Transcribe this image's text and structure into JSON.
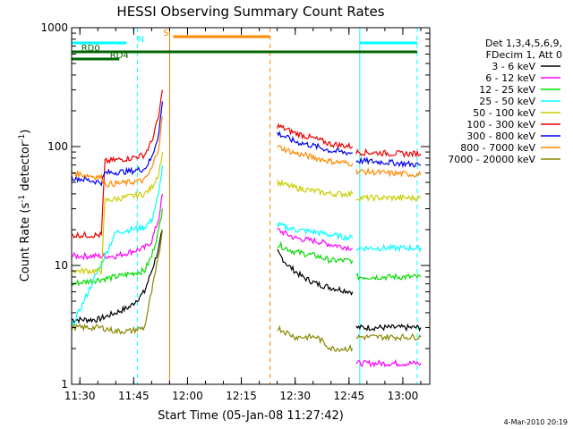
{
  "chart_data": {
    "type": "line",
    "title": "HESSI Observing Summary Count Rates",
    "xlabel": "Start Time (05-Jan-08 11:27:42)",
    "ylabel": "Count Rate (s",
    "ylabel_sup": "-1",
    "ylabel_mid": " detector",
    "ylabel_sup2": "-1",
    "ylabel_end": ")",
    "y_scale": "log",
    "ylim": [
      1,
      1000
    ],
    "xlim": [
      "11:27:42",
      "13:07:30"
    ],
    "x_ticks": [
      "11:30",
      "11:45",
      "12:00",
      "12:15",
      "12:30",
      "12:45",
      "13:00"
    ],
    "y_ticks": [
      "1",
      "10",
      "100",
      "1000"
    ],
    "legend_header": [
      "Det 1,3,4,5,6,9,",
      "FDecim 1, Att 0"
    ],
    "legend_placement": "right",
    "series": [
      {
        "name": "3 - 6 keV",
        "color": "#000000",
        "segments": [
          {
            "x": [
              "11:27:42",
              "11:35",
              "11:40",
              "11:44",
              "11:48",
              "11:50",
              "11:52",
              "11:53"
            ],
            "y": [
              3.5,
              3.5,
              4,
              4.5,
              6,
              9,
              14,
              20
            ]
          },
          {
            "x": [
              "12:25",
              "12:28",
              "12:32",
              "12:36",
              "12:40",
              "12:46"
            ],
            "y": [
              13,
              10,
              8,
              7,
              6.5,
              6
            ]
          },
          {
            "x": [
              "12:47",
              "12:50",
              "12:55",
              "13:00",
              "13:05"
            ],
            "y": [
              3,
              3,
              3,
              3,
              3
            ]
          }
        ]
      },
      {
        "name": "6 - 12 keV",
        "color": "#ff00ff",
        "segments": [
          {
            "x": [
              "11:27:42",
              "11:40",
              "11:44",
              "11:48",
              "11:50",
              "11:52",
              "11:53"
            ],
            "y": [
              12,
              12,
              13,
              14,
              16,
              25,
              40
            ]
          },
          {
            "x": [
              "12:25",
              "12:30",
              "12:36",
              "12:40",
              "12:46"
            ],
            "y": [
              20,
              17,
              16,
              15,
              14
            ]
          },
          {
            "x": [
              "12:47",
              "12:55",
              "13:00",
              "13:05"
            ],
            "y": [
              1.5,
              1.5,
              1.5,
              1.5
            ]
          }
        ]
      },
      {
        "name": "12 - 25 keV",
        "color": "#00dd00",
        "segments": [
          {
            "x": [
              "11:27:42",
              "11:40",
              "11:44",
              "11:48",
              "11:50",
              "11:52",
              "11:53"
            ],
            "y": [
              7,
              8,
              8.5,
              9,
              12,
              20,
              30
            ]
          },
          {
            "x": [
              "12:25",
              "12:30",
              "12:36",
              "12:40",
              "12:46"
            ],
            "y": [
              15,
              13,
              12,
              11,
              11
            ]
          },
          {
            "x": [
              "12:47",
              "12:55",
              "13:00",
              "13:05"
            ],
            "y": [
              8,
              8,
              8,
              8
            ]
          }
        ]
      },
      {
        "name": "25 - 50 keV",
        "color": "#00ffff",
        "segments": [
          {
            "x": [
              "11:27:42",
              "11:40",
              "11:44",
              "11:48",
              "11:50",
              "11:52",
              "11:53"
            ],
            "y": [
              3,
              19,
              20,
              21,
              24,
              40,
              70
            ]
          },
          {
            "x": [
              "12:25",
              "12:30",
              "12:36",
              "12:40",
              "12:46"
            ],
            "y": [
              22,
              20,
              19,
              18,
              17
            ]
          },
          {
            "x": [
              "12:47",
              "12:55",
              "13:00",
              "13:05"
            ],
            "y": [
              14,
              14,
              14,
              14
            ]
          }
        ]
      },
      {
        "name": "50 - 100 keV",
        "color": "#cccc00",
        "segments": [
          {
            "x": [
              "11:27:42",
              "11:36",
              "11:37",
              "11:44",
              "11:48",
              "11:50",
              "11:52",
              "11:53"
            ],
            "y": [
              9,
              9,
              35,
              38,
              40,
              45,
              60,
              90
            ]
          },
          {
            "x": [
              "12:25",
              "12:30",
              "12:36",
              "12:40",
              "12:46"
            ],
            "y": [
              50,
              45,
              42,
              40,
              40
            ]
          },
          {
            "x": [
              "12:47",
              "12:55",
              "13:00",
              "13:05"
            ],
            "y": [
              37,
              37,
              37,
              37
            ]
          }
        ]
      },
      {
        "name": "100 - 300 keV",
        "color": "#ee0000",
        "segments": [
          {
            "x": [
              "11:27:42",
              "11:36",
              "11:37",
              "11:44",
              "11:48",
              "11:50",
              "11:52",
              "11:53"
            ],
            "y": [
              18,
              18,
              75,
              80,
              85,
              110,
              180,
              300
            ]
          },
          {
            "x": [
              "12:25",
              "12:30",
              "12:36",
              "12:40",
              "12:46"
            ],
            "y": [
              150,
              130,
              115,
              105,
              100
            ]
          },
          {
            "x": [
              "12:47",
              "12:55",
              "13:00",
              "13:05"
            ],
            "y": [
              90,
              88,
              87,
              87
            ]
          }
        ]
      },
      {
        "name": "300 - 800 keV",
        "color": "#0000ee",
        "segments": [
          {
            "x": [
              "11:27:42",
              "11:36",
              "11:37",
              "11:44",
              "11:48",
              "11:50",
              "11:52",
              "11:53"
            ],
            "y": [
              55,
              50,
              60,
              62,
              65,
              80,
              130,
              240
            ]
          },
          {
            "x": [
              "12:25",
              "12:30",
              "12:36",
              "12:40",
              "12:46"
            ],
            "y": [
              130,
              110,
              100,
              92,
              88
            ]
          },
          {
            "x": [
              "12:47",
              "12:55",
              "13:00",
              "13:05"
            ],
            "y": [
              76,
              74,
              72,
              70
            ]
          }
        ]
      },
      {
        "name": "800 - 7000 keV",
        "color": "#ff8800",
        "segments": [
          {
            "x": [
              "11:27:42",
              "11:36",
              "11:37",
              "11:44",
              "11:48",
              "11:50",
              "11:52",
              "11:53"
            ],
            "y": [
              60,
              55,
              48,
              50,
              52,
              65,
              100,
              180
            ]
          },
          {
            "x": [
              "12:25",
              "12:30",
              "12:36",
              "12:40",
              "12:46"
            ],
            "y": [
              100,
              88,
              80,
              75,
              72
            ]
          },
          {
            "x": [
              "12:47",
              "12:55",
              "13:00",
              "13:05"
            ],
            "y": [
              62,
              60,
              59,
              58
            ]
          }
        ]
      },
      {
        "name": "7000 - 20000 keV",
        "color": "#888800",
        "segments": [
          {
            "x": [
              "11:27:42",
              "11:36",
              "11:40",
              "11:44",
              "11:48",
              "11:50",
              "11:52",
              "11:53"
            ],
            "y": [
              3,
              3,
              2.8,
              2.8,
              3,
              6,
              12,
              20
            ]
          },
          {
            "x": [
              "12:25",
              "12:30",
              "12:36",
              "12:40",
              "12:46"
            ],
            "y": [
              3,
              2.5,
              2.5,
              2,
              2
            ]
          },
          {
            "x": [
              "12:47",
              "12:55",
              "13:00",
              "13:05"
            ],
            "y": [
              2.5,
              2.5,
              2.5,
              2.5
            ]
          }
        ]
      }
    ],
    "flags": [
      {
        "label": "RD0",
        "color": "#006600",
        "x": [
          "11:27:42",
          "13:04"
        ],
        "text_pos": "11:33"
      },
      {
        "label": "RD4",
        "color": "#006600",
        "x": [
          "11:27:42",
          "11:41"
        ],
        "text_pos": "11:41"
      },
      {
        "label": "N",
        "color": "#00ffff",
        "x": [
          "11:27:42",
          "11:43"
        ],
        "text_pos": "11:47"
      },
      {
        "label": "N",
        "color": "#00ffff",
        "x": [
          "12:48",
          "13:04"
        ],
        "text_pos": ""
      },
      {
        "label": "S",
        "color": "#ff8800",
        "x": [
          "11:56",
          "12:23"
        ],
        "text_pos": "11:54"
      }
    ],
    "vertical_lines": [
      {
        "x": "11:46",
        "color": "#00ffff",
        "style": "dashed"
      },
      {
        "x": "11:55",
        "color": "#cc8800",
        "style": "solid"
      },
      {
        "x": "12:23",
        "color": "#ff8800",
        "style": "dashed"
      },
      {
        "x": "12:48",
        "color": "#00ffff",
        "style": "solid"
      },
      {
        "x": "13:04",
        "color": "#00ffff",
        "style": "dashed"
      }
    ],
    "footer": "4-Mar-2010 20:19"
  }
}
